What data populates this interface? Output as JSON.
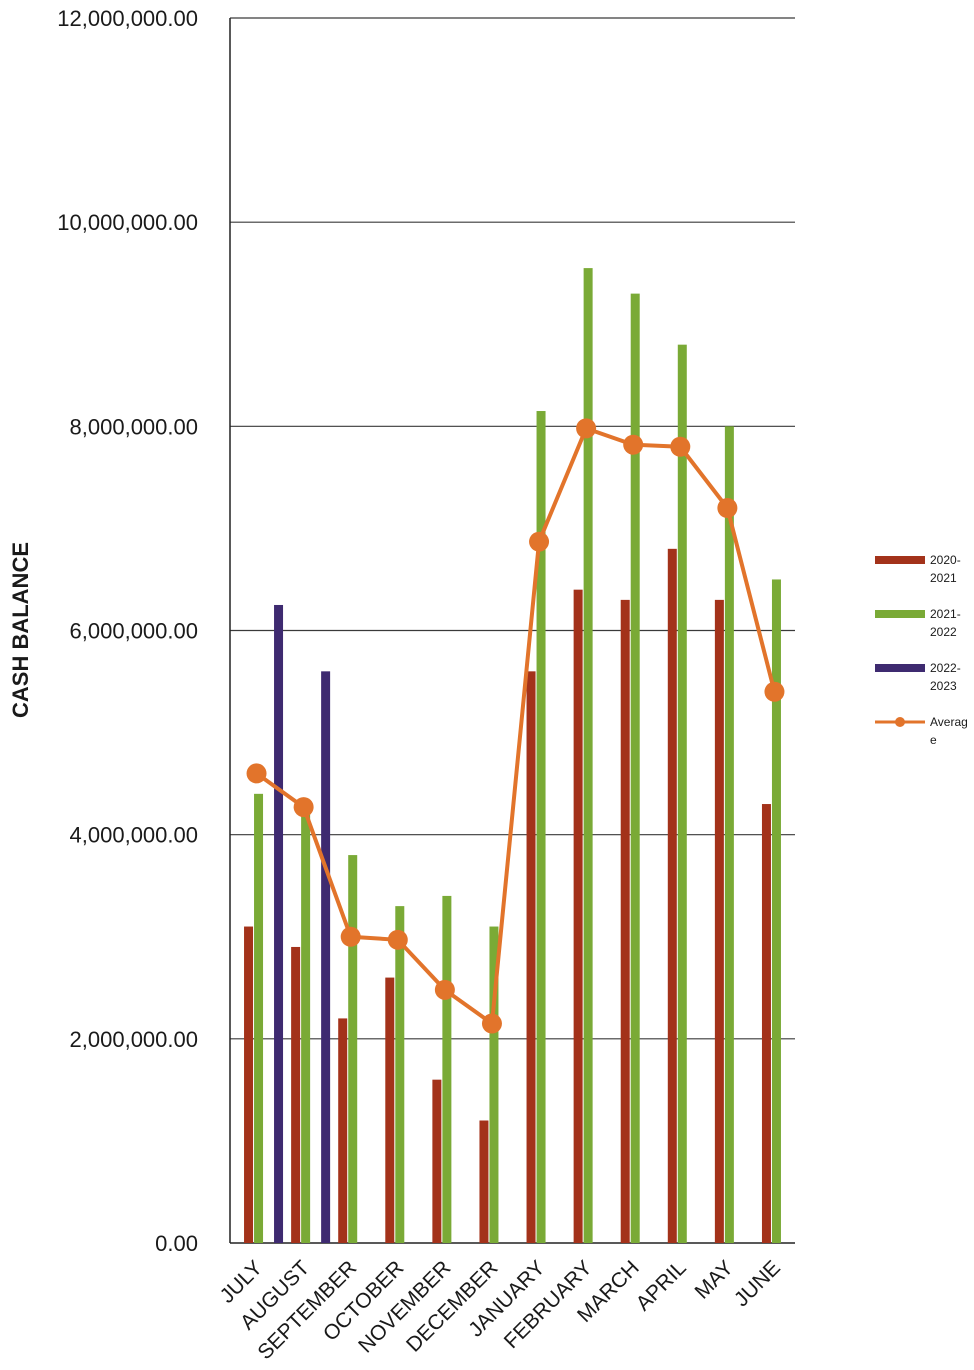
{
  "chart_data": {
    "type": "bar",
    "ylabel": "CASH BALANCE",
    "ylim": [
      0,
      12000000
    ],
    "yticks": [
      "0.00",
      "2,000,000.00",
      "4,000,000.00",
      "6,000,000.00",
      "8,000,000.00",
      "10,000,000.00",
      "12,000,000.00"
    ],
    "ytick_values": [
      0,
      2000000,
      4000000,
      6000000,
      8000000,
      10000000,
      12000000
    ],
    "grid": "horizontal",
    "legend_position": "right",
    "categories": [
      "JULY",
      "AUGUST",
      "SEPTEMBER",
      "OCTOBER",
      "NOVEMBER",
      "DECEMBER",
      "JANUARY",
      "FEBRUARY",
      "MARCH",
      "APRIL",
      "MAY",
      "JUNE"
    ],
    "series": [
      {
        "name": "2020-2021",
        "legend_lines": [
          "2020-",
          "2021"
        ],
        "kind": "bar",
        "color": "#a3321a",
        "values": [
          3100000,
          2900000,
          2200000,
          2600000,
          1600000,
          1200000,
          5600000,
          6400000,
          6300000,
          6800000,
          6300000,
          4300000
        ]
      },
      {
        "name": "2021-2022",
        "legend_lines": [
          "2021-",
          "2022"
        ],
        "kind": "bar",
        "color": "#7aaa36",
        "values": [
          4400000,
          4300000,
          3800000,
          3300000,
          3400000,
          3100000,
          8150000,
          9550000,
          9300000,
          8800000,
          8000000,
          6500000
        ]
      },
      {
        "name": "2022-2023",
        "legend_lines": [
          "2022-",
          "2023"
        ],
        "kind": "bar",
        "color": "#3e2a70",
        "values": [
          6250000,
          5600000,
          null,
          null,
          null,
          null,
          null,
          null,
          null,
          null,
          null,
          null
        ]
      },
      {
        "name": "Average",
        "legend_lines": [
          "Averag",
          "e"
        ],
        "kind": "line",
        "color": "#e2742b",
        "values": [
          4600000,
          4270000,
          3000000,
          2970000,
          2480000,
          2150000,
          6870000,
          7980000,
          7820000,
          7800000,
          7200000,
          5400000
        ]
      }
    ]
  }
}
